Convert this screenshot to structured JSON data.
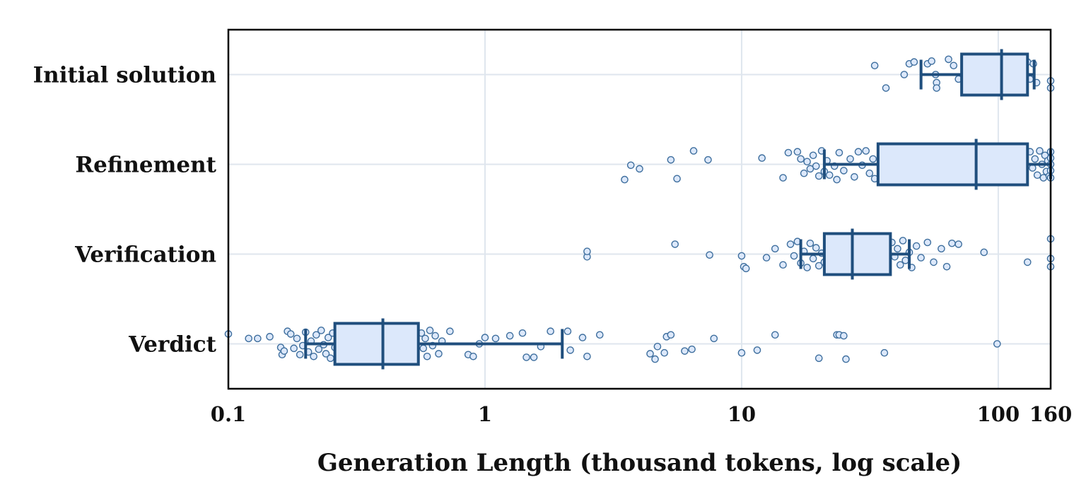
{
  "chart_data": {
    "type": "box",
    "orientation": "horizontal",
    "title": "",
    "xlabel": "Generation Length (thousand tokens, log scale)",
    "ylabel": "",
    "xscale": "log",
    "xlim": [
      0.1,
      160
    ],
    "xticks": [
      0.1,
      1,
      10,
      100,
      160
    ],
    "xtick_labels": [
      "0.1",
      "1",
      "10",
      "100",
      "160"
    ],
    "grid": true,
    "colors": {
      "box_fill": "#dce8fb",
      "box_edge": "#1f4e7d",
      "point_fill": "#dce8fb",
      "point_edge": "#3f6f9e",
      "grid": "#dfe6ee"
    },
    "categories": [
      {
        "name": "Initial solution",
        "q1": 72,
        "median": 103,
        "q3": 130,
        "whisker_low": 50,
        "whisker_high": 138,
        "points": [
          {
            "x": 33,
            "o": -0.1
          },
          {
            "x": 43,
            "o": 0.0
          },
          {
            "x": 45,
            "o": -0.12
          },
          {
            "x": 47,
            "o": -0.14
          },
          {
            "x": 36.5,
            "o": 0.15
          },
          {
            "x": 53,
            "o": -0.12
          },
          {
            "x": 55,
            "o": -0.15
          },
          {
            "x": 57,
            "o": 0.0
          },
          {
            "x": 57.5,
            "o": 0.09
          },
          {
            "x": 57.5,
            "o": 0.15
          },
          {
            "x": 64,
            "o": -0.17
          },
          {
            "x": 67,
            "o": -0.1
          },
          {
            "x": 70,
            "o": 0.05
          },
          {
            "x": 75,
            "o": -0.12
          },
          {
            "x": 80,
            "o": 0.05
          },
          {
            "x": 88,
            "o": -0.1
          },
          {
            "x": 95,
            "o": 0.0
          },
          {
            "x": 110,
            "o": -0.14
          },
          {
            "x": 118,
            "o": 0.08
          },
          {
            "x": 122,
            "o": -0.05
          },
          {
            "x": 130,
            "o": -0.14
          },
          {
            "x": 133,
            "o": 0.05
          },
          {
            "x": 137,
            "o": -0.12
          },
          {
            "x": 141,
            "o": 0.09
          },
          {
            "x": 160,
            "o": 0.07
          },
          {
            "x": 160,
            "o": 0.15
          }
        ]
      },
      {
        "name": "Refinement",
        "q1": 34,
        "median": 82,
        "q3": 130,
        "whisker_low": 21,
        "whisker_high": 160,
        "points": [
          {
            "x": 3.5,
            "o": 0.17
          },
          {
            "x": 3.7,
            "o": 0.01
          },
          {
            "x": 4.0,
            "o": 0.05
          },
          {
            "x": 5.3,
            "o": -0.05
          },
          {
            "x": 5.6,
            "o": 0.16
          },
          {
            "x": 6.5,
            "o": -0.15
          },
          {
            "x": 7.4,
            "o": -0.05
          },
          {
            "x": 12.0,
            "o": -0.07
          },
          {
            "x": 14.5,
            "o": 0.15
          },
          {
            "x": 15.2,
            "o": -0.13
          },
          {
            "x": 16.5,
            "o": -0.14
          },
          {
            "x": 17.0,
            "o": -0.06
          },
          {
            "x": 17.5,
            "o": 0.1
          },
          {
            "x": 18.0,
            "o": -0.03
          },
          {
            "x": 18.5,
            "o": 0.05
          },
          {
            "x": 19.0,
            "o": -0.1
          },
          {
            "x": 19.5,
            "o": 0.02
          },
          {
            "x": 20.0,
            "o": 0.13
          },
          {
            "x": 20.5,
            "o": -0.15
          },
          {
            "x": 21.0,
            "o": 0.08
          },
          {
            "x": 21.5,
            "o": -0.04
          },
          {
            "x": 22.0,
            "o": 0.12
          },
          {
            "x": 23.0,
            "o": 0.02
          },
          {
            "x": 23.5,
            "o": 0.17
          },
          {
            "x": 24.0,
            "o": -0.13
          },
          {
            "x": 25.0,
            "o": 0.07
          },
          {
            "x": 26.5,
            "o": -0.06
          },
          {
            "x": 27.5,
            "o": 0.14
          },
          {
            "x": 28.5,
            "o": -0.14
          },
          {
            "x": 29.5,
            "o": 0.01
          },
          {
            "x": 30.5,
            "o": -0.15
          },
          {
            "x": 31.5,
            "o": 0.1
          },
          {
            "x": 32.5,
            "o": -0.06
          },
          {
            "x": 33.0,
            "o": 0.16
          },
          {
            "x": 133,
            "o": -0.14
          },
          {
            "x": 136,
            "o": 0.04
          },
          {
            "x": 139,
            "o": -0.06
          },
          {
            "x": 142,
            "o": 0.12
          },
          {
            "x": 145,
            "o": -0.15
          },
          {
            "x": 148,
            "o": 0.0
          },
          {
            "x": 150,
            "o": 0.15
          },
          {
            "x": 152,
            "o": -0.1
          },
          {
            "x": 154,
            "o": 0.08
          },
          {
            "x": 156,
            "o": -0.04
          },
          {
            "x": 158,
            "o": 0.13
          },
          {
            "x": 160,
            "o": -0.14
          },
          {
            "x": 160,
            "o": -0.07
          },
          {
            "x": 160,
            "o": 0.0
          },
          {
            "x": 160,
            "o": 0.07
          },
          {
            "x": 160,
            "o": 0.15
          }
        ]
      },
      {
        "name": "Verification",
        "q1": 21,
        "median": 27,
        "q3": 38,
        "whisker_low": 17,
        "whisker_high": 45,
        "points": [
          {
            "x": 2.5,
            "o": 0.03
          },
          {
            "x": 2.5,
            "o": -0.03
          },
          {
            "x": 5.5,
            "o": -0.11
          },
          {
            "x": 7.5,
            "o": 0.01
          },
          {
            "x": 10.0,
            "o": 0.02
          },
          {
            "x": 10.2,
            "o": 0.14
          },
          {
            "x": 10.4,
            "o": 0.16
          },
          {
            "x": 12.5,
            "o": 0.04
          },
          {
            "x": 13.5,
            "o": -0.06
          },
          {
            "x": 14.5,
            "o": 0.12
          },
          {
            "x": 15.5,
            "o": -0.11
          },
          {
            "x": 16.0,
            "o": 0.02
          },
          {
            "x": 16.5,
            "o": -0.14
          },
          {
            "x": 17.0,
            "o": 0.1
          },
          {
            "x": 17.5,
            "o": -0.03
          },
          {
            "x": 18.0,
            "o": 0.15
          },
          {
            "x": 18.5,
            "o": -0.12
          },
          {
            "x": 19.0,
            "o": 0.05
          },
          {
            "x": 19.5,
            "o": -0.07
          },
          {
            "x": 20.0,
            "o": 0.13
          },
          {
            "x": 20.5,
            "o": -0.01
          },
          {
            "x": 21.0,
            "o": 0.09
          },
          {
            "x": 38.5,
            "o": -0.13
          },
          {
            "x": 39.5,
            "o": 0.03
          },
          {
            "x": 40.5,
            "o": -0.06
          },
          {
            "x": 41.5,
            "o": 0.12
          },
          {
            "x": 42.5,
            "o": -0.15
          },
          {
            "x": 43.5,
            "o": 0.07
          },
          {
            "x": 45.0,
            "o": -0.02
          },
          {
            "x": 46.0,
            "o": 0.15
          },
          {
            "x": 48.0,
            "o": -0.09
          },
          {
            "x": 50.0,
            "o": 0.04
          },
          {
            "x": 53.0,
            "o": -0.13
          },
          {
            "x": 56.0,
            "o": 0.09
          },
          {
            "x": 60.0,
            "o": -0.06
          },
          {
            "x": 63.0,
            "o": 0.14
          },
          {
            "x": 66.0,
            "o": -0.12
          },
          {
            "x": 70.0,
            "o": -0.11
          },
          {
            "x": 88.0,
            "o": -0.02
          },
          {
            "x": 130,
            "o": 0.09
          },
          {
            "x": 160,
            "o": -0.17
          },
          {
            "x": 160,
            "o": 0.05
          },
          {
            "x": 160,
            "o": 0.14
          }
        ]
      },
      {
        "name": "Verdict",
        "q1": 0.26,
        "median": 0.4,
        "q3": 0.55,
        "whisker_low": 0.2,
        "whisker_high": 2.0,
        "points": [
          {
            "x": 0.1,
            "o": -0.11
          },
          {
            "x": 0.12,
            "o": -0.06
          },
          {
            "x": 0.13,
            "o": -0.06
          },
          {
            "x": 0.145,
            "o": -0.08
          },
          {
            "x": 0.16,
            "o": 0.04
          },
          {
            "x": 0.162,
            "o": 0.12
          },
          {
            "x": 0.165,
            "o": 0.08
          },
          {
            "x": 0.17,
            "o": -0.14
          },
          {
            "x": 0.175,
            "o": -0.11
          },
          {
            "x": 0.18,
            "o": 0.05
          },
          {
            "x": 0.185,
            "o": -0.06
          },
          {
            "x": 0.19,
            "o": 0.12
          },
          {
            "x": 0.195,
            "o": 0.02
          },
          {
            "x": 0.2,
            "o": -0.13
          },
          {
            "x": 0.205,
            "o": 0.09
          },
          {
            "x": 0.21,
            "o": -0.03
          },
          {
            "x": 0.215,
            "o": 0.14
          },
          {
            "x": 0.22,
            "o": -0.1
          },
          {
            "x": 0.225,
            "o": 0.06
          },
          {
            "x": 0.23,
            "o": -0.15
          },
          {
            "x": 0.235,
            "o": 0.01
          },
          {
            "x": 0.24,
            "o": 0.11
          },
          {
            "x": 0.245,
            "o": -0.07
          },
          {
            "x": 0.25,
            "o": 0.16
          },
          {
            "x": 0.255,
            "o": -0.12
          },
          {
            "x": 0.26,
            "o": 0.04
          },
          {
            "x": 0.565,
            "o": -0.12
          },
          {
            "x": 0.575,
            "o": 0.05
          },
          {
            "x": 0.585,
            "o": -0.06
          },
          {
            "x": 0.595,
            "o": 0.14
          },
          {
            "x": 0.61,
            "o": -0.15
          },
          {
            "x": 0.625,
            "o": 0.02
          },
          {
            "x": 0.64,
            "o": -0.09
          },
          {
            "x": 0.66,
            "o": 0.11
          },
          {
            "x": 0.68,
            "o": -0.03
          },
          {
            "x": 0.73,
            "o": -0.14
          },
          {
            "x": 0.86,
            "o": 0.12
          },
          {
            "x": 0.9,
            "o": 0.14
          },
          {
            "x": 0.95,
            "o": 0.0
          },
          {
            "x": 1.0,
            "o": -0.07
          },
          {
            "x": 1.1,
            "o": -0.06
          },
          {
            "x": 1.25,
            "o": -0.09
          },
          {
            "x": 1.45,
            "o": 0.15
          },
          {
            "x": 1.55,
            "o": 0.15
          },
          {
            "x": 1.4,
            "o": -0.12
          },
          {
            "x": 1.65,
            "o": 0.03
          },
          {
            "x": 1.8,
            "o": -0.14
          },
          {
            "x": 2.1,
            "o": -0.14
          },
          {
            "x": 2.15,
            "o": 0.07
          },
          {
            "x": 2.4,
            "o": -0.07
          },
          {
            "x": 2.5,
            "o": 0.14
          },
          {
            "x": 2.8,
            "o": -0.1
          },
          {
            "x": 4.4,
            "o": 0.11
          },
          {
            "x": 4.6,
            "o": 0.17
          },
          {
            "x": 4.7,
            "o": 0.03
          },
          {
            "x": 5.0,
            "o": 0.1
          },
          {
            "x": 5.1,
            "o": -0.08
          },
          {
            "x": 5.3,
            "o": -0.1
          },
          {
            "x": 6.0,
            "o": 0.08
          },
          {
            "x": 6.4,
            "o": 0.06
          },
          {
            "x": 7.8,
            "o": -0.06
          },
          {
            "x": 10.0,
            "o": 0.1
          },
          {
            "x": 11.5,
            "o": 0.07
          },
          {
            "x": 13.5,
            "o": -0.1
          },
          {
            "x": 20,
            "o": 0.16
          },
          {
            "x": 23.5,
            "o": -0.1
          },
          {
            "x": 24,
            "o": -0.1
          },
          {
            "x": 25,
            "o": -0.09
          },
          {
            "x": 25.5,
            "o": 0.17
          },
          {
            "x": 36,
            "o": 0.1
          },
          {
            "x": 99,
            "o": 0.0
          }
        ]
      }
    ]
  }
}
